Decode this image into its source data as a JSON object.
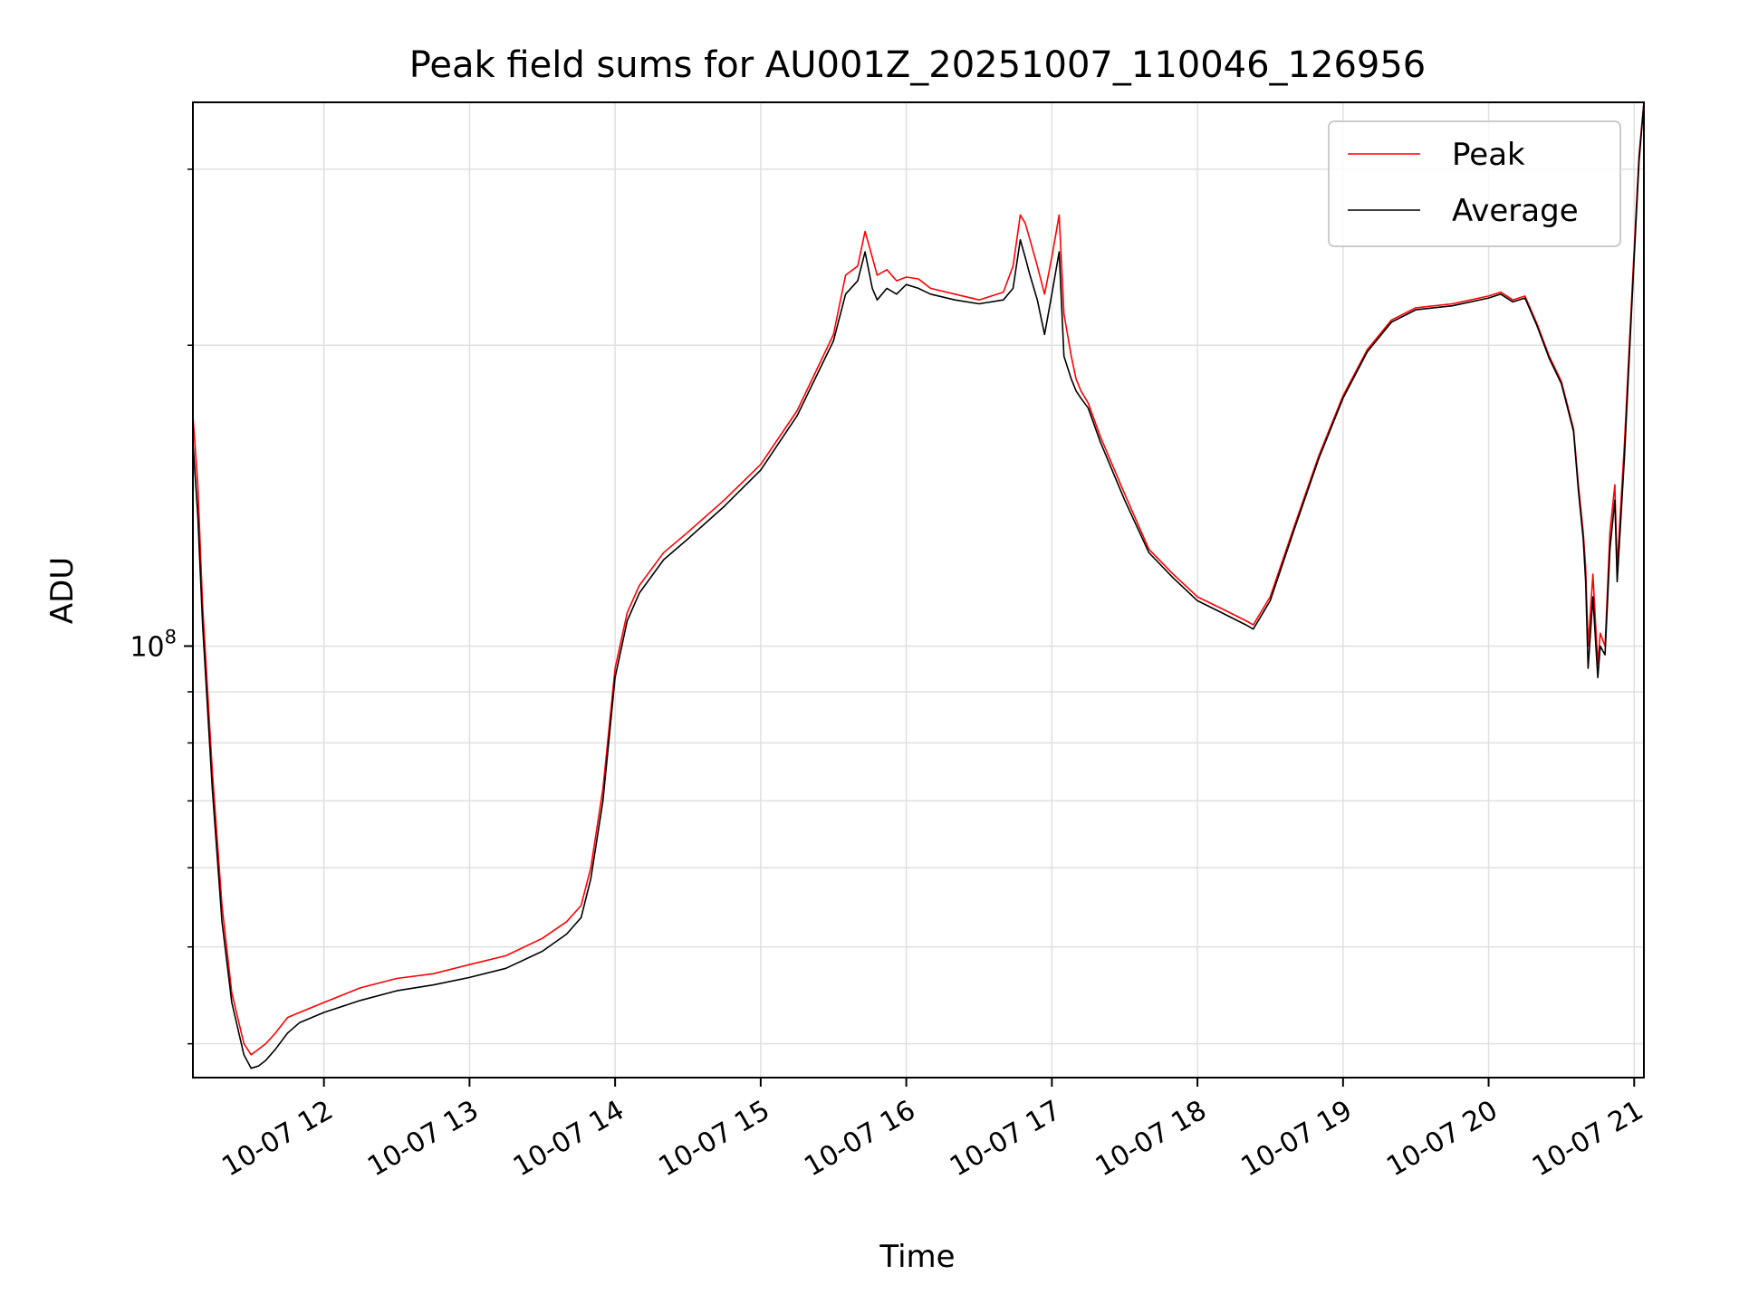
{
  "chart_data": {
    "type": "line",
    "title": "Peak field sums for AU001Z_20251007_110046_126956",
    "xlabel": "Time",
    "ylabel": "ADU",
    "yscale": "log",
    "ylim": [
      37000000,
      350000000
    ],
    "xlim": [
      "2025-10-07 11:06",
      "2025-10-07 21:04"
    ],
    "grid": true,
    "legend": "top-right",
    "x_tick_labels": [
      "10-07 12",
      "10-07 13",
      "10-07 14",
      "10-07 15",
      "10-07 16",
      "10-07 17",
      "10-07 18",
      "10-07 19",
      "10-07 20",
      "10-07 21"
    ],
    "x_ticks": [
      "2025-10-07 12:00",
      "2025-10-07 13:00",
      "2025-10-07 14:00",
      "2025-10-07 15:00",
      "2025-10-07 16:00",
      "2025-10-07 17:00",
      "2025-10-07 18:00",
      "2025-10-07 19:00",
      "2025-10-07 20:00",
      "2025-10-07 21:00"
    ],
    "y_tick_label": {
      "base": "10",
      "exp": "8"
    },
    "y_tick_value": 100000000,
    "y_minor_ticks": [
      40000000,
      50000000,
      60000000,
      70000000,
      80000000,
      90000000,
      200000000,
      300000000
    ],
    "series": [
      {
        "name": "Peak",
        "color": "#ff0000",
        "x": [
          "2025-10-07 11:06",
          "2025-10-07 11:08",
          "2025-10-07 11:10",
          "2025-10-07 11:14",
          "2025-10-07 11:18",
          "2025-10-07 11:22",
          "2025-10-07 11:27",
          "2025-10-07 11:30",
          "2025-10-07 11:33",
          "2025-10-07 11:36",
          "2025-10-07 11:40",
          "2025-10-07 11:45",
          "2025-10-07 11:50",
          "2025-10-07 12:00",
          "2025-10-07 12:15",
          "2025-10-07 12:30",
          "2025-10-07 12:45",
          "2025-10-07 13:00",
          "2025-10-07 13:15",
          "2025-10-07 13:30",
          "2025-10-07 13:40",
          "2025-10-07 13:46",
          "2025-10-07 13:50",
          "2025-10-07 13:55",
          "2025-10-07 14:00",
          "2025-10-07 14:05",
          "2025-10-07 14:10",
          "2025-10-07 14:20",
          "2025-10-07 14:30",
          "2025-10-07 14:45",
          "2025-10-07 15:00",
          "2025-10-07 15:15",
          "2025-10-07 15:30",
          "2025-10-07 15:35",
          "2025-10-07 15:40",
          "2025-10-07 15:43",
          "2025-10-07 15:46",
          "2025-10-07 15:48",
          "2025-10-07 15:52",
          "2025-10-07 15:56",
          "2025-10-07 16:00",
          "2025-10-07 16:05",
          "2025-10-07 16:10",
          "2025-10-07 16:20",
          "2025-10-07 16:30",
          "2025-10-07 16:40",
          "2025-10-07 16:44",
          "2025-10-07 16:47",
          "2025-10-07 16:49",
          "2025-10-07 16:51",
          "2025-10-07 16:54",
          "2025-10-07 16:57",
          "2025-10-07 17:00",
          "2025-10-07 17:03",
          "2025-10-07 17:05",
          "2025-10-07 17:08",
          "2025-10-07 17:10",
          "2025-10-07 17:12",
          "2025-10-07 17:15",
          "2025-10-07 17:20",
          "2025-10-07 17:30",
          "2025-10-07 17:40",
          "2025-10-07 17:50",
          "2025-10-07 18:00",
          "2025-10-07 18:10",
          "2025-10-07 18:20",
          "2025-10-07 18:23",
          "2025-10-07 18:30",
          "2025-10-07 18:40",
          "2025-10-07 18:50",
          "2025-10-07 19:00",
          "2025-10-07 19:10",
          "2025-10-07 19:20",
          "2025-10-07 19:30",
          "2025-10-07 19:45",
          "2025-10-07 20:00",
          "2025-10-07 20:05",
          "2025-10-07 20:10",
          "2025-10-07 20:15",
          "2025-10-07 20:20",
          "2025-10-07 20:25",
          "2025-10-07 20:30",
          "2025-10-07 20:35",
          "2025-10-07 20:37",
          "2025-10-07 20:39",
          "2025-10-07 20:40",
          "2025-10-07 20:41",
          "2025-10-07 20:43",
          "2025-10-07 20:45",
          "2025-10-07 20:46",
          "2025-10-07 20:48",
          "2025-10-07 20:50",
          "2025-10-07 20:52",
          "2025-10-07 20:53",
          "2025-10-07 20:56",
          "2025-10-07 20:58",
          "2025-10-07 21:00",
          "2025-10-07 21:02",
          "2025-10-07 21:04"
        ],
        "y": [
          170000000,
          145000000,
          110000000,
          75000000,
          55000000,
          45000000,
          40000000,
          39000000,
          39500000,
          40000000,
          41000000,
          42500000,
          43000000,
          44000000,
          45500000,
          46500000,
          47000000,
          48000000,
          49000000,
          51000000,
          53000000,
          55000000,
          60000000,
          72000000,
          95000000,
          108000000,
          115000000,
          124000000,
          130000000,
          140000000,
          152000000,
          172000000,
          205000000,
          235000000,
          240000000,
          260000000,
          245000000,
          235000000,
          238000000,
          232000000,
          234000000,
          233000000,
          228000000,
          225000000,
          222000000,
          226000000,
          240000000,
          270000000,
          265000000,
          255000000,
          240000000,
          225000000,
          245000000,
          270000000,
          215000000,
          195000000,
          185000000,
          180000000,
          175000000,
          162000000,
          142000000,
          125000000,
          118000000,
          112000000,
          109000000,
          106000000,
          105000000,
          112000000,
          132000000,
          155000000,
          178000000,
          198000000,
          212000000,
          218000000,
          220000000,
          224000000,
          226000000,
          222000000,
          224000000,
          210000000,
          195000000,
          184000000,
          165000000,
          145000000,
          130000000,
          120000000,
          100000000,
          118000000,
          96000000,
          103000000,
          100000000,
          130000000,
          145000000,
          120000000,
          160000000,
          200000000,
          250000000,
          310000000,
          350000000
        ]
      },
      {
        "name": "Average",
        "color": "#000000",
        "x": [
          "2025-10-07 11:06",
          "2025-10-07 11:08",
          "2025-10-07 11:10",
          "2025-10-07 11:14",
          "2025-10-07 11:18",
          "2025-10-07 11:22",
          "2025-10-07 11:27",
          "2025-10-07 11:30",
          "2025-10-07 11:33",
          "2025-10-07 11:36",
          "2025-10-07 11:40",
          "2025-10-07 11:45",
          "2025-10-07 11:50",
          "2025-10-07 12:00",
          "2025-10-07 12:15",
          "2025-10-07 12:30",
          "2025-10-07 12:45",
          "2025-10-07 13:00",
          "2025-10-07 13:15",
          "2025-10-07 13:30",
          "2025-10-07 13:40",
          "2025-10-07 13:46",
          "2025-10-07 13:50",
          "2025-10-07 13:55",
          "2025-10-07 14:00",
          "2025-10-07 14:05",
          "2025-10-07 14:10",
          "2025-10-07 14:20",
          "2025-10-07 14:30",
          "2025-10-07 14:45",
          "2025-10-07 15:00",
          "2025-10-07 15:15",
          "2025-10-07 15:30",
          "2025-10-07 15:35",
          "2025-10-07 15:40",
          "2025-10-07 15:43",
          "2025-10-07 15:46",
          "2025-10-07 15:48",
          "2025-10-07 15:52",
          "2025-10-07 15:56",
          "2025-10-07 16:00",
          "2025-10-07 16:05",
          "2025-10-07 16:10",
          "2025-10-07 16:20",
          "2025-10-07 16:30",
          "2025-10-07 16:40",
          "2025-10-07 16:44",
          "2025-10-07 16:47",
          "2025-10-07 16:49",
          "2025-10-07 16:51",
          "2025-10-07 16:54",
          "2025-10-07 16:57",
          "2025-10-07 17:00",
          "2025-10-07 17:03",
          "2025-10-07 17:05",
          "2025-10-07 17:08",
          "2025-10-07 17:10",
          "2025-10-07 17:12",
          "2025-10-07 17:15",
          "2025-10-07 17:20",
          "2025-10-07 17:30",
          "2025-10-07 17:40",
          "2025-10-07 17:50",
          "2025-10-07 18:00",
          "2025-10-07 18:10",
          "2025-10-07 18:20",
          "2025-10-07 18:23",
          "2025-10-07 18:30",
          "2025-10-07 18:40",
          "2025-10-07 18:50",
          "2025-10-07 19:00",
          "2025-10-07 19:10",
          "2025-10-07 19:20",
          "2025-10-07 19:30",
          "2025-10-07 19:45",
          "2025-10-07 20:00",
          "2025-10-07 20:05",
          "2025-10-07 20:10",
          "2025-10-07 20:15",
          "2025-10-07 20:20",
          "2025-10-07 20:25",
          "2025-10-07 20:30",
          "2025-10-07 20:35",
          "2025-10-07 20:37",
          "2025-10-07 20:39",
          "2025-10-07 20:40",
          "2025-10-07 20:41",
          "2025-10-07 20:43",
          "2025-10-07 20:45",
          "2025-10-07 20:46",
          "2025-10-07 20:48",
          "2025-10-07 20:50",
          "2025-10-07 20:52",
          "2025-10-07 20:53",
          "2025-10-07 20:56",
          "2025-10-07 20:58",
          "2025-10-07 21:00",
          "2025-10-07 21:02",
          "2025-10-07 21:04"
        ],
        "y": [
          160000000,
          135000000,
          105000000,
          72000000,
          53000000,
          44000000,
          39000000,
          37800000,
          38000000,
          38500000,
          39500000,
          41000000,
          42000000,
          43000000,
          44200000,
          45200000,
          45800000,
          46600000,
          47600000,
          49500000,
          51500000,
          53500000,
          58500000,
          70000000,
          93000000,
          106000000,
          113000000,
          122000000,
          128000000,
          138000000,
          150000000,
          170000000,
          202000000,
          225000000,
          232000000,
          248000000,
          228000000,
          222000000,
          228000000,
          225000000,
          230000000,
          228000000,
          225000000,
          222000000,
          220000000,
          222000000,
          228000000,
          255000000,
          245000000,
          235000000,
          222000000,
          205000000,
          225000000,
          248000000,
          195000000,
          185000000,
          180000000,
          177000000,
          173000000,
          160000000,
          140000000,
          124000000,
          117000000,
          111000000,
          108000000,
          105000000,
          104000000,
          111000000,
          131000000,
          154000000,
          177000000,
          197000000,
          211000000,
          217000000,
          219000000,
          223000000,
          225000000,
          221000000,
          223000000,
          209000000,
          194000000,
          183000000,
          164000000,
          143000000,
          128000000,
          116000000,
          95000000,
          112000000,
          93000000,
          100000000,
          98000000,
          125000000,
          140000000,
          116000000,
          155000000,
          195000000,
          245000000,
          305000000,
          350000000
        ]
      }
    ]
  }
}
